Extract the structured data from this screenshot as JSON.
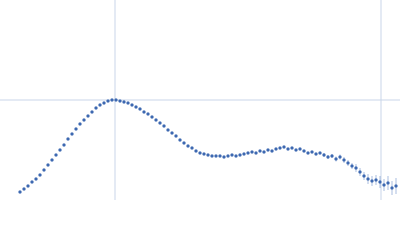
{
  "chart_data": {
    "type": "scatter",
    "color": "#3d68b1",
    "error_color": "#a9bedf",
    "xlim": [
      0,
      400
    ],
    "ylim": [
      0,
      200
    ],
    "xgrid": [
      115,
      381
    ],
    "ygrid": [
      100
    ],
    "series": [
      {
        "x": [
          20,
          24,
          28,
          32,
          36,
          40,
          44,
          48,
          52,
          56,
          60,
          64,
          68,
          72,
          76,
          80,
          84,
          88,
          92,
          96,
          100,
          104,
          108,
          112,
          116,
          120,
          124,
          128,
          132,
          136,
          140,
          144,
          148,
          152,
          156,
          160,
          164,
          168,
          172,
          176,
          180,
          184,
          188,
          192,
          196,
          200,
          204,
          208,
          212,
          216,
          220,
          224,
          228,
          232,
          236,
          240,
          244,
          248,
          252,
          256,
          260,
          264,
          268,
          272,
          276,
          280,
          284,
          288,
          292,
          296,
          300,
          304,
          308,
          312,
          316,
          320,
          324,
          328,
          332,
          336,
          340,
          344,
          348,
          352,
          356,
          360,
          364,
          368,
          372,
          376,
          380,
          384,
          388,
          392,
          396
        ],
        "values": [
          8,
          11,
          14,
          18,
          21,
          25,
          30,
          35,
          40,
          45,
          50,
          55,
          61,
          66,
          71,
          76,
          80,
          84,
          88,
          92,
          95,
          97,
          99,
          100,
          100,
          99,
          98,
          97,
          95,
          93,
          91,
          88,
          86,
          83,
          80,
          77,
          74,
          70,
          67,
          64,
          60,
          57,
          54,
          52,
          49,
          47,
          46,
          45,
          44,
          44,
          44,
          43,
          44,
          45,
          44,
          45,
          46,
          47,
          48,
          47,
          49,
          48,
          50,
          49,
          51,
          52,
          53,
          51,
          52,
          50,
          51,
          49,
          47,
          48,
          46,
          47,
          45,
          43,
          44,
          41,
          43,
          40,
          37,
          34,
          32,
          28,
          24,
          21,
          19,
          20,
          18,
          15,
          17,
          12,
          14
        ],
        "errors": [
          0.5,
          0.5,
          0.5,
          0.5,
          0.5,
          0.5,
          0.5,
          0.5,
          0.5,
          0.5,
          0.5,
          0.5,
          0.5,
          0.5,
          0.5,
          0.5,
          0.5,
          0.5,
          0.5,
          0.5,
          0.5,
          0.5,
          0.5,
          0.5,
          0.5,
          0.5,
          0.5,
          0.5,
          0.5,
          0.5,
          0.5,
          0.5,
          0.5,
          0.5,
          0.5,
          0.5,
          0.5,
          0.5,
          0.5,
          0.5,
          0.5,
          0.5,
          0.5,
          0.5,
          0.5,
          0.5,
          0.5,
          0.5,
          0.5,
          0.5,
          0.5,
          0.5,
          0.5,
          0.5,
          0.5,
          0.5,
          0.5,
          0.5,
          0.5,
          0.5,
          0.5,
          0.5,
          0.5,
          0.5,
          0.5,
          0.5,
          0.5,
          0.5,
          0.5,
          0.5,
          1,
          1,
          1,
          1.5,
          1.5,
          1.5,
          2,
          2,
          2,
          2.5,
          2.5,
          3,
          3,
          3,
          4,
          4,
          4,
          5,
          5,
          5,
          6,
          6,
          7,
          7,
          8
        ]
      }
    ]
  }
}
